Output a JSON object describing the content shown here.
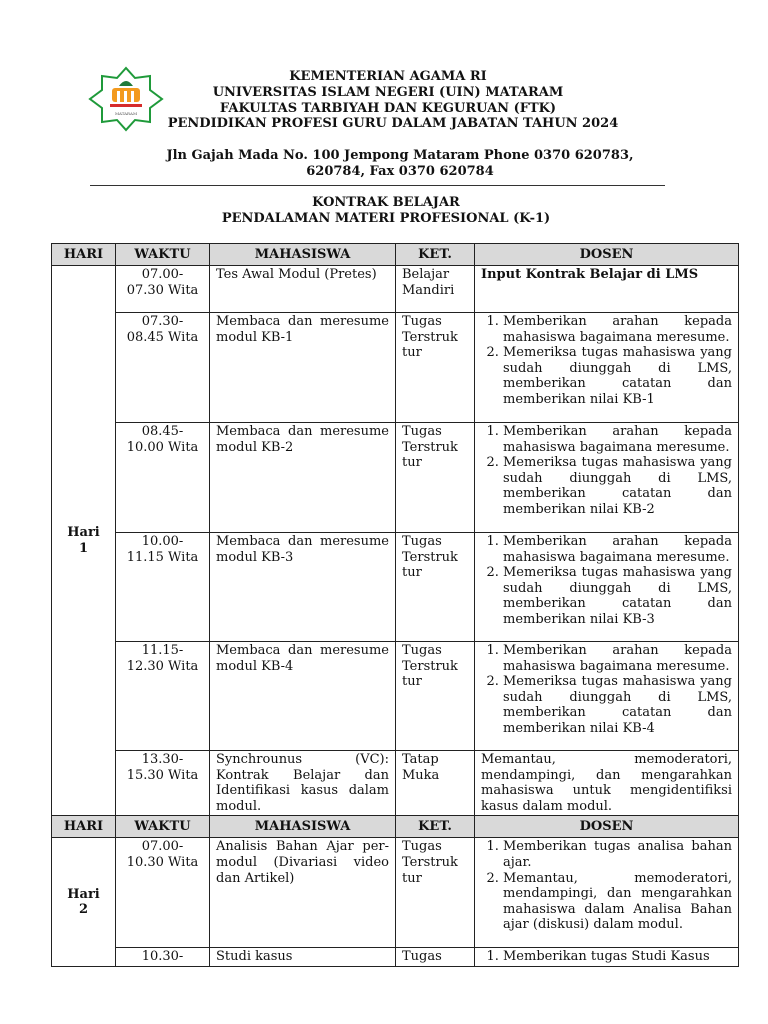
{
  "header": {
    "lines": [
      "KEMENTERIAN AGAMA RI",
      "UNIVERSITAS ISLAM NEGERI (UIN) MATARAM",
      "FAKULTAS TARBIYAH DAN KEGURUAN (FTK)",
      "PENDIDIKAN PROFESI GURU DALAM JABATAN TAHUN 2024"
    ],
    "address": [
      "Jln Gajah Mada No. 100 Jempong Mataram Phone 0370 620783,",
      "620784, Fax 0370 620784"
    ],
    "title": [
      "KONTRAK BELAJAR",
      "PENDALAMAN MATERI PROFESIONAL (K-1)"
    ],
    "logo_text": "MATARAM",
    "logo_colors": {
      "green": "#1f9a3a",
      "orange": "#f39a1e",
      "red": "#d62b2b"
    }
  },
  "columns": [
    "HARI",
    "WAKTU",
    "MAHASISWA",
    "KET.",
    "DOSEN"
  ],
  "day1": {
    "label": [
      "Hari",
      "1"
    ],
    "rows": [
      {
        "waktu": "07.00- 07.30 Wita",
        "mahasiswa": "Tes Awal Modul (Pretes)",
        "ket": "Belajar Mandiri",
        "dosen_bold": "Input Kontrak Belajar di LMS"
      },
      {
        "waktu": "07.30- 08.45 Wita",
        "mahasiswa": "Membaca dan meresume modul KB-1",
        "ket": "Tugas Terstruk tur",
        "dosen": [
          "Memberikan arahan kepada mahasiswa bagaimana meresume.",
          "Memeriksa tugas mahasiswa yang sudah diunggah di LMS, memberikan catatan dan memberikan nilai KB-1"
        ]
      },
      {
        "waktu": "08.45- 10.00 Wita",
        "mahasiswa": "Membaca dan meresume modul KB-2",
        "ket": "Tugas Terstruk tur",
        "dosen": [
          "Memberikan arahan kepada mahasiswa bagaimana meresume.",
          "Memeriksa tugas mahasiswa yang sudah diunggah di LMS, memberikan catatan dan memberikan nilai KB-2"
        ]
      },
      {
        "waktu": "10.00- 11.15 Wita",
        "mahasiswa": "Membaca dan meresume modul KB-3",
        "ket": "Tugas Terstruk tur",
        "dosen": [
          "Memberikan arahan kepada mahasiswa bagaimana meresume.",
          "Memeriksa tugas mahasiswa yang sudah diunggah di LMS, memberikan catatan dan memberikan nilai KB-3"
        ]
      },
      {
        "waktu": "11.15- 12.30 Wita",
        "mahasiswa": "Membaca dan meresume modul KB-4",
        "ket": "Tugas Terstruk tur",
        "dosen": [
          "Memberikan arahan kepada mahasiswa bagaimana meresume.",
          "Memeriksa tugas mahasiswa yang sudah diunggah di LMS, memberikan catatan dan memberikan nilai KB-4"
        ]
      },
      {
        "waktu": "13.30- 15.30 Wita",
        "mahasiswa": "Synchrounus (VC): Kontrak Belajar dan Identifikasi kasus dalam modul.",
        "ket": "Tatap Muka",
        "dosen_text": "Memantau, memoderatori, mendampingi, dan mengarahkan mahasiswa untuk mengidentifiksi kasus dalam modul."
      }
    ]
  },
  "day2": {
    "label": [
      "Hari",
      "2"
    ],
    "rows": [
      {
        "waktu": "07.00- 10.30 Wita",
        "mahasiswa": "Analisis Bahan Ajar per-modul (Divariasi video dan Artikel)",
        "ket": "Tugas Terstruk tur",
        "dosen": [
          "Memberikan tugas analisa bahan ajar.",
          "Memantau, memoderatori, mendampingi, dan mengarahkan mahasiswa dalam Analisa Bahan ajar (diskusi) dalam modul."
        ]
      },
      {
        "waktu": "10.30-",
        "mahasiswa": "Studi kasus",
        "ket": "Tugas",
        "dosen": [
          "Memberikan tugas Studi Kasus"
        ]
      }
    ]
  }
}
